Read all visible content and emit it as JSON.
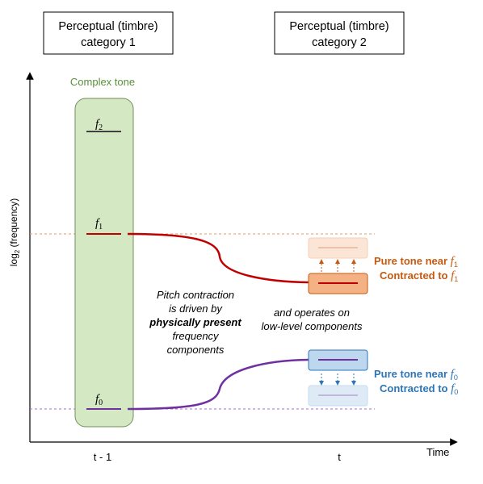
{
  "category_boxes": {
    "left": {
      "line1": "Perceptual (timbre)",
      "line2": "category 1"
    },
    "right": {
      "line1": "Perceptual (timbre)",
      "line2": "category 2"
    }
  },
  "axes": {
    "y_label": "log",
    "y_label_sub": "2",
    "y_label_rest": " (frequency)",
    "x_label": "Time",
    "tick_left": "t - 1",
    "tick_right": "t"
  },
  "complex_tone": {
    "label": "Complex tone",
    "f2": {
      "base": "f",
      "sub": "2"
    },
    "f1": {
      "base": "f",
      "sub": "1"
    },
    "f0": {
      "base": "f",
      "sub": "0"
    }
  },
  "annotations": {
    "pitch_l1": "Pitch contraction",
    "pitch_l2": "is driven by",
    "pitch_l3": "physically present",
    "pitch_l4": "frequency",
    "pitch_l5": "components",
    "operates_l1": "and operates on",
    "operates_l2": "low-level components"
  },
  "upper_label": {
    "line1_text": "Pure tone near ",
    "line2_text": "Contracted to ",
    "f_base": "f",
    "f_sub": "1"
  },
  "lower_label": {
    "line1_text": "Pure tone near ",
    "line2_text": "Contracted to ",
    "f_base": "f",
    "f_sub": "0"
  },
  "colors": {
    "complex_fill": "#d5e8c4",
    "complex_stroke": "#6f8f5a",
    "complex_label": "#5a8f3c",
    "red_curve": "#c00000",
    "purple_curve": "#7030a0",
    "orange_text": "#c55a11",
    "blue_text": "#2e75b6",
    "orange_box": "#f4b183",
    "orange_box_faint": "#fbe5d6",
    "blue_box": "#bdd7ee",
    "blue_box_faint": "#deebf7"
  }
}
